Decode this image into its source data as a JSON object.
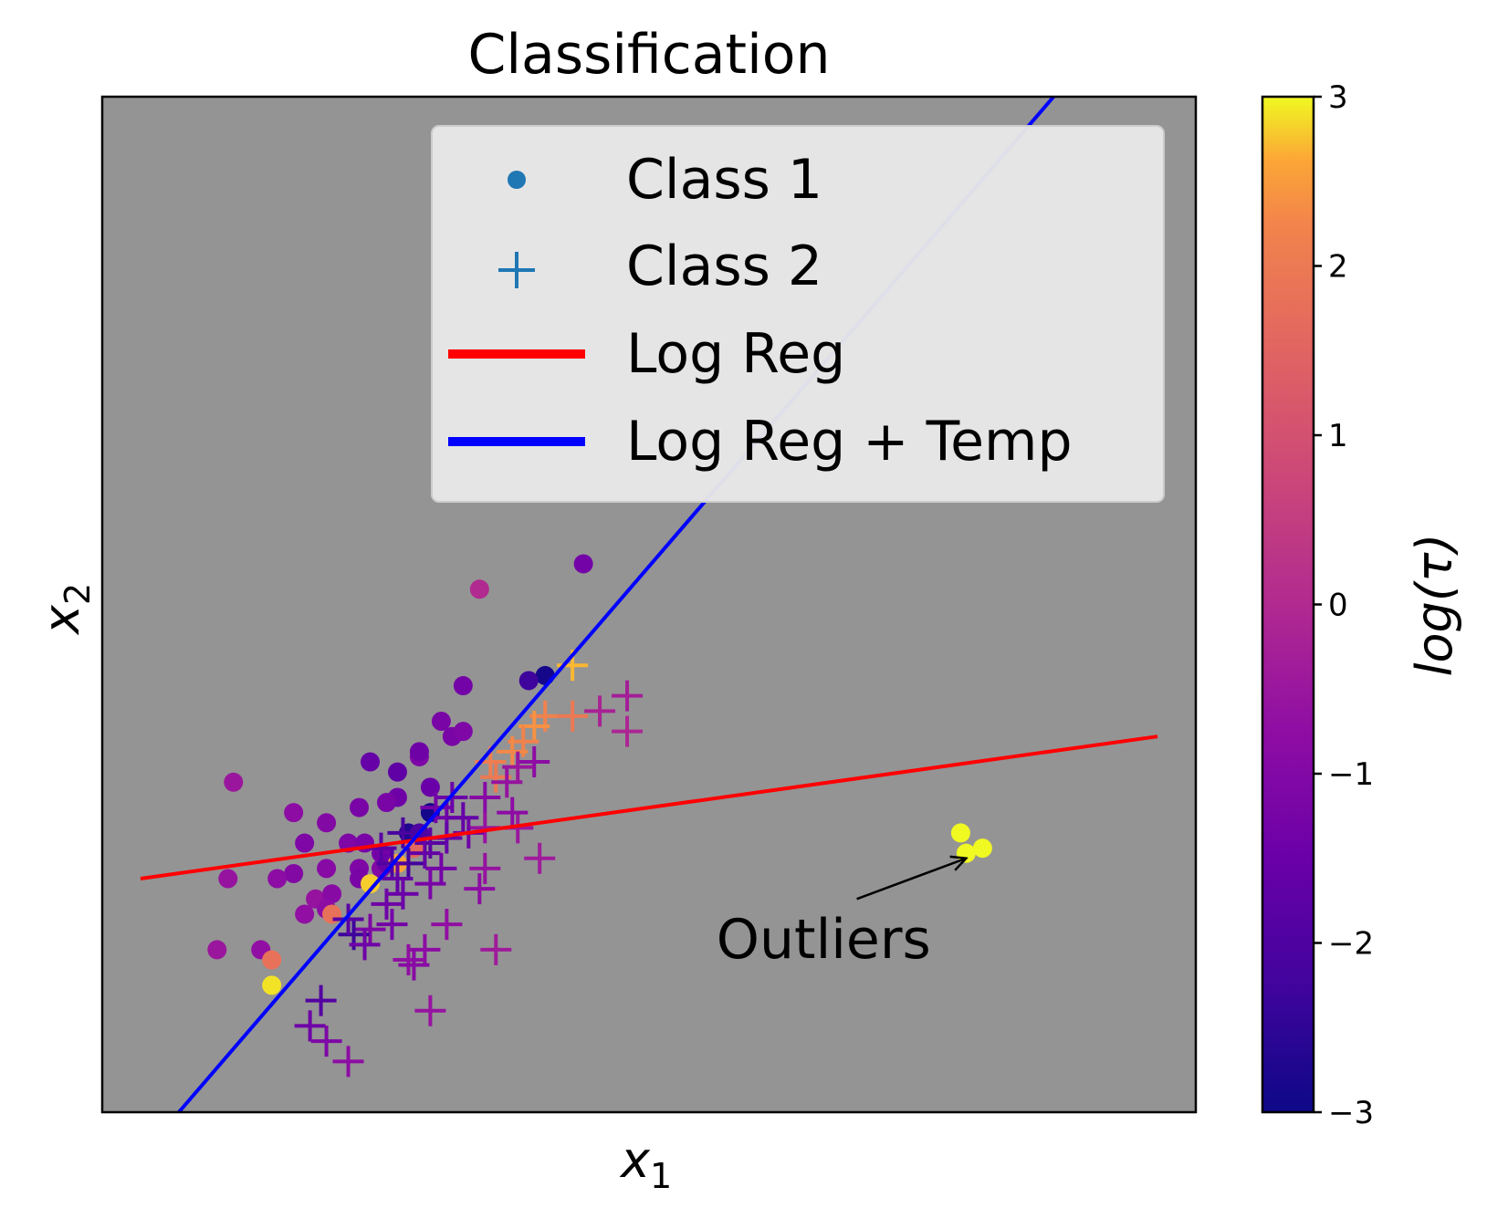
{
  "chart_data": {
    "type": "scatter",
    "title": "Classification",
    "xlabel": "x",
    "xlabel_sub": "1",
    "ylabel": "x",
    "ylabel_sub": "2",
    "xlim": [
      0,
      10
    ],
    "ylim": [
      0,
      10
    ],
    "ticks_shown": false,
    "grid": false,
    "background": "#949494",
    "legend": {
      "placement": "top-right",
      "entries": [
        {
          "label": "Class 1",
          "kind": "marker-dot",
          "color": "#1f77b4"
        },
        {
          "label": "Class 2",
          "kind": "marker-plus",
          "color": "#1f77b4"
        },
        {
          "label": "Log Reg",
          "kind": "line",
          "color": "#ff0000"
        },
        {
          "label": "Log Reg + Temp",
          "kind": "line",
          "color": "#0000ff"
        }
      ]
    },
    "colorbar": {
      "label": "log(τ)",
      "colormap": "plasma",
      "range": [
        -3,
        3
      ],
      "ticks": [
        -3,
        -2,
        -1,
        0,
        1,
        2,
        3
      ],
      "tick_labels": [
        "−3",
        "−2",
        "−1",
        "0",
        "1",
        "2",
        "3"
      ]
    },
    "lines": [
      {
        "name": "Log Reg",
        "color": "#ff0000",
        "x": [
          0.35,
          9.65
        ],
        "y": [
          2.3,
          3.7
        ]
      },
      {
        "name": "Log Reg + Temp",
        "color": "#0000ff",
        "x": [
          0.7,
          8.7
        ],
        "y": [
          0.0,
          10.0
        ]
      }
    ],
    "annotation": {
      "text": "Outliers",
      "text_xy": [
        6.0,
        1.7
      ],
      "arrow_from": [
        6.9,
        2.1
      ],
      "arrow_to": [
        7.9,
        2.5
      ]
    },
    "series": [
      {
        "name": "Class 1",
        "marker": "dot",
        "points": [
          [
            4.4,
            5.4,
            -1.3
          ],
          [
            3.45,
            5.15,
            0.0
          ],
          [
            3.3,
            4.2,
            -1.3
          ],
          [
            3.2,
            3.7,
            -1.2
          ],
          [
            3.1,
            3.85,
            -1.2
          ],
          [
            3.3,
            3.75,
            -1.1
          ],
          [
            2.9,
            3.5,
            -1.1
          ],
          [
            2.9,
            3.55,
            -1.4
          ],
          [
            3.0,
            3.2,
            -1.5
          ],
          [
            2.7,
            3.1,
            -1.4
          ],
          [
            2.6,
            3.05,
            -1.2
          ],
          [
            2.35,
            3.0,
            -1.2
          ],
          [
            3.0,
            2.95,
            -2.9
          ],
          [
            2.8,
            2.75,
            -2.7
          ],
          [
            2.45,
            3.45,
            -1.6
          ],
          [
            2.7,
            3.35,
            -1.7
          ],
          [
            4.05,
            4.3,
            -2.9
          ],
          [
            3.9,
            4.25,
            -2.3
          ],
          [
            1.2,
            3.25,
            -0.5
          ],
          [
            1.75,
            2.95,
            -0.8
          ],
          [
            1.85,
            2.65,
            -1.1
          ],
          [
            2.05,
            2.85,
            -1.0
          ],
          [
            2.25,
            2.65,
            -1.1
          ],
          [
            2.4,
            2.65,
            -1.2
          ],
          [
            2.55,
            2.55,
            -1.3
          ],
          [
            1.75,
            2.35,
            -1.0
          ],
          [
            1.15,
            2.3,
            -0.6
          ],
          [
            1.6,
            2.3,
            -0.8
          ],
          [
            2.05,
            2.4,
            -0.9
          ],
          [
            2.35,
            2.4,
            -1.1
          ],
          [
            2.55,
            2.4,
            -1.0
          ],
          [
            2.35,
            2.3,
            -1.2
          ],
          [
            1.95,
            2.1,
            -0.6
          ],
          [
            2.1,
            2.15,
            -0.9
          ],
          [
            1.85,
            1.95,
            -0.7
          ],
          [
            2.05,
            2.0,
            -0.8
          ],
          [
            2.6,
            2.45,
            -1.5
          ],
          [
            2.9,
            2.75,
            -2.0
          ],
          [
            2.1,
            1.95,
            1.8
          ],
          [
            2.45,
            2.25,
            2.8
          ],
          [
            2.7,
            2.45,
            2.6
          ],
          [
            2.85,
            2.6,
            1.6
          ],
          [
            1.05,
            1.6,
            -0.5
          ],
          [
            1.45,
            1.6,
            -0.7
          ],
          [
            1.55,
            1.5,
            1.8
          ],
          [
            1.55,
            1.25,
            2.9
          ],
          [
            7.9,
            2.55,
            3.0
          ],
          [
            7.85,
            2.75,
            3.0
          ],
          [
            8.05,
            2.6,
            3.0
          ]
        ]
      },
      {
        "name": "Class 2",
        "marker": "plus",
        "points": [
          [
            4.3,
            4.4,
            2.7
          ],
          [
            4.05,
            3.9,
            2.2
          ],
          [
            4.3,
            3.9,
            2.0
          ],
          [
            3.95,
            3.8,
            2.4
          ],
          [
            3.85,
            3.65,
            2.2
          ],
          [
            3.75,
            3.55,
            2.3
          ],
          [
            3.55,
            3.45,
            2.1
          ],
          [
            3.6,
            3.3,
            2.0
          ],
          [
            4.8,
            4.1,
            -0.3
          ],
          [
            4.8,
            3.75,
            -0.1
          ],
          [
            3.95,
            3.45,
            -0.8
          ],
          [
            3.7,
            3.25,
            -0.6
          ],
          [
            3.8,
            3.4,
            -0.5
          ],
          [
            3.5,
            3.1,
            -0.9
          ],
          [
            3.2,
            3.1,
            -1.5
          ],
          [
            3.15,
            2.9,
            -1.4
          ],
          [
            3.5,
            2.8,
            -0.6
          ],
          [
            3.8,
            2.8,
            -0.5
          ],
          [
            3.75,
            2.95,
            -0.8
          ],
          [
            3.05,
            3.0,
            -1.3
          ],
          [
            3.3,
            2.9,
            -1.6
          ],
          [
            3.0,
            2.65,
            -1.8
          ],
          [
            2.75,
            2.75,
            -2.1
          ],
          [
            3.15,
            2.7,
            -1.6
          ],
          [
            3.35,
            2.75,
            -1.4
          ],
          [
            2.8,
            2.45,
            -2.2
          ],
          [
            2.65,
            2.45,
            -2.0
          ],
          [
            2.55,
            2.6,
            -1.8
          ],
          [
            2.95,
            2.55,
            -1.6
          ],
          [
            3.1,
            2.4,
            -1.3
          ],
          [
            2.7,
            2.3,
            -1.6
          ],
          [
            3.0,
            2.25,
            -1.2
          ],
          [
            2.75,
            2.15,
            -1.5
          ],
          [
            2.6,
            2.05,
            -1.4
          ],
          [
            3.5,
            2.4,
            -0.6
          ],
          [
            3.45,
            2.2,
            -0.8
          ],
          [
            4.0,
            2.5,
            -0.4
          ],
          [
            3.15,
            1.85,
            -0.7
          ],
          [
            2.65,
            1.85,
            -1.3
          ],
          [
            2.45,
            1.8,
            -1.1
          ],
          [
            2.3,
            1.75,
            -2.3
          ],
          [
            2.25,
            1.9,
            -1.8
          ],
          [
            2.4,
            1.65,
            -1.4
          ],
          [
            2.95,
            1.6,
            -0.8
          ],
          [
            2.8,
            1.5,
            -0.7
          ],
          [
            3.6,
            1.6,
            -0.4
          ],
          [
            2.85,
            1.45,
            -0.9
          ],
          [
            3.0,
            1.0,
            -0.6
          ],
          [
            2.0,
            1.1,
            -1.9
          ],
          [
            1.9,
            0.85,
            -1.4
          ],
          [
            2.05,
            0.7,
            -1.1
          ],
          [
            2.25,
            0.5,
            -0.8
          ],
          [
            4.55,
            3.95,
            -0.2
          ]
        ]
      }
    ]
  }
}
